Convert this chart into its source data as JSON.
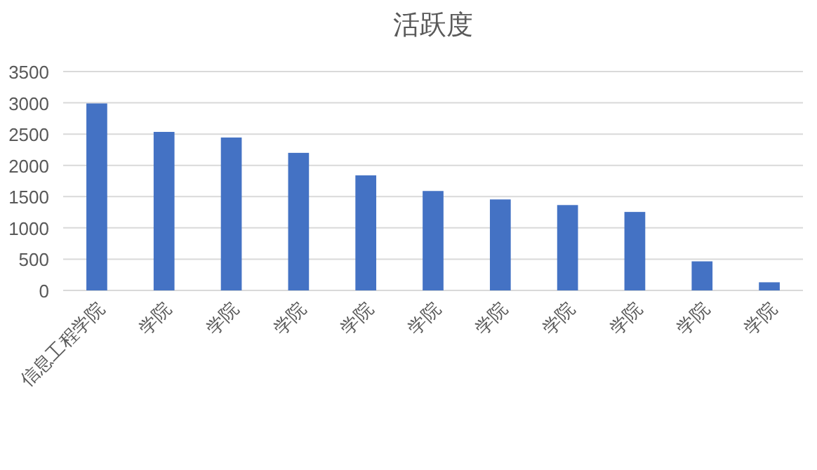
{
  "chart_data": {
    "type": "bar",
    "title": "活跃度",
    "categories": [
      "信息工程学院",
      "学院",
      "学院",
      "学院",
      "学院",
      "学院",
      "学院",
      "学院",
      "学院",
      "学院",
      "学院"
    ],
    "values": [
      2990,
      2535,
      2445,
      2200,
      1840,
      1590,
      1455,
      1365,
      1255,
      465,
      130
    ],
    "color": "#4472c4",
    "ylim": [
      0,
      3500
    ],
    "yticks": [
      0,
      500,
      1000,
      1500,
      2000,
      2500,
      3000,
      3500
    ],
    "grid": "y"
  }
}
